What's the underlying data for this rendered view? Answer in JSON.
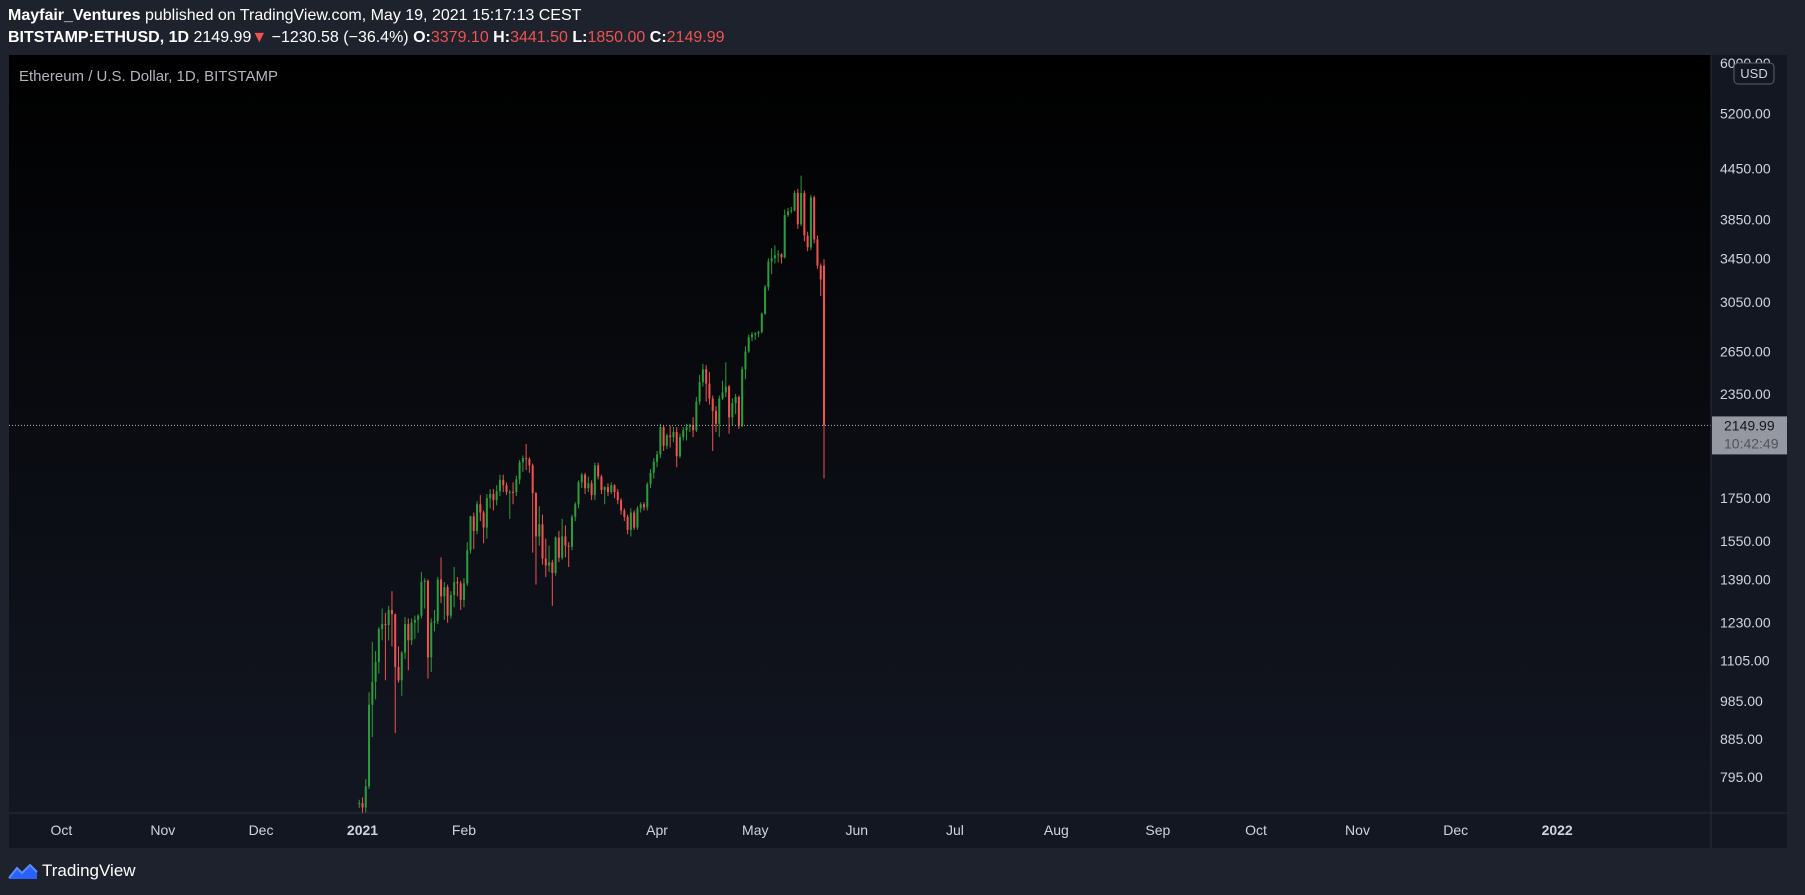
{
  "header": {
    "publisher": "Mayfair_Ventures",
    "published_text": " published on TradingView.com, May 19, 2021 15:17:13 CEST",
    "symbol": "BITSTAMP:ETHUSD, 1D",
    "last_price": "2149.99",
    "change": "−1230.58 (−36.4%)",
    "open_label": "O:",
    "open_value": "3379.10",
    "high_label": "H:",
    "high_value": "3441.50",
    "low_label": "L:",
    "low_value": "1850.00",
    "close_label": "C:",
    "close_value": "2149.99"
  },
  "footer": {
    "brand": "TradingView"
  },
  "colors": {
    "up": "#26a69a",
    "up_candle": "#2e9c3c",
    "down": "#ef5350",
    "background_top": "#000000",
    "background_bottom": "#131722",
    "price_label_bg": "#9598a1"
  },
  "chart_data": {
    "type": "candlestick",
    "title": "Ethereum / U.S. Dollar, 1D, BITSTAMP",
    "currency": "USD",
    "y_scale": "log",
    "ylim": [
      730,
      6100
    ],
    "y_ticks": [
      "6000.00",
      "5200.00",
      "4450.00",
      "3850.00",
      "3450.00",
      "3050.00",
      "2650.00",
      "2350.00",
      "1750.00",
      "1550.00",
      "1390.00",
      "1230.00",
      "1105.00",
      "985.00",
      "885.00",
      "795.00"
    ],
    "x_ticks": [
      {
        "label": "Oct",
        "date": "2020-10-01",
        "bold": false
      },
      {
        "label": "Nov",
        "date": "2020-11-01",
        "bold": false
      },
      {
        "label": "Dec",
        "date": "2020-12-01",
        "bold": false
      },
      {
        "label": "2021",
        "date": "2021-01-01",
        "bold": true
      },
      {
        "label": "Feb",
        "date": "2021-02-01",
        "bold": false
      },
      {
        "label": "Apr",
        "date": "2021-04-01",
        "bold": false
      },
      {
        "label": "May",
        "date": "2021-05-01",
        "bold": false
      },
      {
        "label": "Jun",
        "date": "2021-06-01",
        "bold": false
      },
      {
        "label": "Jul",
        "date": "2021-07-01",
        "bold": false
      },
      {
        "label": "Aug",
        "date": "2021-08-01",
        "bold": false
      },
      {
        "label": "Sep",
        "date": "2021-09-01",
        "bold": false
      },
      {
        "label": "Oct",
        "date": "2021-10-01",
        "bold": false
      },
      {
        "label": "Nov",
        "date": "2021-11-01",
        "bold": false
      },
      {
        "label": "Dec",
        "date": "2021-12-01",
        "bold": false
      },
      {
        "label": "2022",
        "date": "2022-01-01",
        "bold": true
      }
    ],
    "x_range": [
      "2020-09-15",
      "2022-02-17"
    ],
    "last_price": {
      "value": 2149.99,
      "label": "2149.99",
      "countdown": "10:42:49"
    },
    "series": [
      {
        "d": "2020-12-31",
        "o": 737,
        "h": 745,
        "l": 728,
        "c": 738
      },
      {
        "d": "2021-01-01",
        "o": 738,
        "h": 750,
        "l": 716,
        "c": 729
      },
      {
        "d": "2021-01-02",
        "o": 729,
        "h": 790,
        "l": 718,
        "c": 774
      },
      {
        "d": "2021-01-03",
        "o": 774,
        "h": 1010,
        "l": 768,
        "c": 975
      },
      {
        "d": "2021-01-04",
        "o": 975,
        "h": 1165,
        "l": 890,
        "c": 1040
      },
      {
        "d": "2021-01-05",
        "o": 1040,
        "h": 1135,
        "l": 990,
        "c": 1100
      },
      {
        "d": "2021-01-06",
        "o": 1100,
        "h": 1215,
        "l": 1065,
        "c": 1208
      },
      {
        "d": "2021-01-07",
        "o": 1208,
        "h": 1280,
        "l": 1170,
        "c": 1225
      },
      {
        "d": "2021-01-08",
        "o": 1225,
        "h": 1265,
        "l": 1045,
        "c": 1222
      },
      {
        "d": "2021-01-09",
        "o": 1222,
        "h": 1290,
        "l": 1170,
        "c": 1275
      },
      {
        "d": "2021-01-10",
        "o": 1275,
        "h": 1345,
        "l": 1150,
        "c": 1260
      },
      {
        "d": "2021-01-11",
        "o": 1260,
        "h": 1262,
        "l": 900,
        "c": 1085
      },
      {
        "d": "2021-01-12",
        "o": 1085,
        "h": 1150,
        "l": 1038,
        "c": 1045
      },
      {
        "d": "2021-01-13",
        "o": 1045,
        "h": 1135,
        "l": 1000,
        "c": 1130
      },
      {
        "d": "2021-01-14",
        "o": 1130,
        "h": 1250,
        "l": 1110,
        "c": 1225
      },
      {
        "d": "2021-01-15",
        "o": 1225,
        "h": 1245,
        "l": 1075,
        "c": 1170
      },
      {
        "d": "2021-01-16",
        "o": 1170,
        "h": 1245,
        "l": 1155,
        "c": 1230
      },
      {
        "d": "2021-01-17",
        "o": 1230,
        "h": 1255,
        "l": 1175,
        "c": 1240
      },
      {
        "d": "2021-01-18",
        "o": 1240,
        "h": 1260,
        "l": 1195,
        "c": 1255
      },
      {
        "d": "2021-01-19",
        "o": 1255,
        "h": 1420,
        "l": 1245,
        "c": 1380
      },
      {
        "d": "2021-01-20",
        "o": 1380,
        "h": 1395,
        "l": 1280,
        "c": 1385
      },
      {
        "d": "2021-01-21",
        "o": 1385,
        "h": 1390,
        "l": 1050,
        "c": 1115
      },
      {
        "d": "2021-01-22",
        "o": 1115,
        "h": 1245,
        "l": 1070,
        "c": 1230
      },
      {
        "d": "2021-01-23",
        "o": 1230,
        "h": 1275,
        "l": 1200,
        "c": 1235
      },
      {
        "d": "2021-01-24",
        "o": 1235,
        "h": 1400,
        "l": 1225,
        "c": 1390
      },
      {
        "d": "2021-01-25",
        "o": 1390,
        "h": 1480,
        "l": 1300,
        "c": 1325
      },
      {
        "d": "2021-01-26",
        "o": 1325,
        "h": 1380,
        "l": 1240,
        "c": 1360
      },
      {
        "d": "2021-01-27",
        "o": 1360,
        "h": 1370,
        "l": 1230,
        "c": 1255
      },
      {
        "d": "2021-01-28",
        "o": 1255,
        "h": 1345,
        "l": 1245,
        "c": 1330
      },
      {
        "d": "2021-01-29",
        "o": 1330,
        "h": 1440,
        "l": 1285,
        "c": 1380
      },
      {
        "d": "2021-01-30",
        "o": 1380,
        "h": 1400,
        "l": 1325,
        "c": 1375
      },
      {
        "d": "2021-01-31",
        "o": 1375,
        "h": 1385,
        "l": 1275,
        "c": 1312
      },
      {
        "d": "2021-02-01",
        "o": 1312,
        "h": 1395,
        "l": 1285,
        "c": 1375
      },
      {
        "d": "2021-02-02",
        "o": 1375,
        "h": 1545,
        "l": 1365,
        "c": 1510
      },
      {
        "d": "2021-02-03",
        "o": 1510,
        "h": 1665,
        "l": 1495,
        "c": 1662
      },
      {
        "d": "2021-02-04",
        "o": 1662,
        "h": 1680,
        "l": 1515,
        "c": 1595
      },
      {
        "d": "2021-02-05",
        "o": 1595,
        "h": 1735,
        "l": 1580,
        "c": 1720
      },
      {
        "d": "2021-02-06",
        "o": 1720,
        "h": 1765,
        "l": 1640,
        "c": 1680
      },
      {
        "d": "2021-02-07",
        "o": 1680,
        "h": 1690,
        "l": 1540,
        "c": 1610
      },
      {
        "d": "2021-02-08",
        "o": 1610,
        "h": 1770,
        "l": 1560,
        "c": 1750
      },
      {
        "d": "2021-02-09",
        "o": 1750,
        "h": 1795,
        "l": 1700,
        "c": 1770
      },
      {
        "d": "2021-02-10",
        "o": 1770,
        "h": 1795,
        "l": 1690,
        "c": 1740
      },
      {
        "d": "2021-02-11",
        "o": 1740,
        "h": 1815,
        "l": 1715,
        "c": 1785
      },
      {
        "d": "2021-02-12",
        "o": 1785,
        "h": 1870,
        "l": 1760,
        "c": 1843
      },
      {
        "d": "2021-02-13",
        "o": 1843,
        "h": 1870,
        "l": 1780,
        "c": 1815
      },
      {
        "d": "2021-02-14",
        "o": 1815,
        "h": 1830,
        "l": 1765,
        "c": 1780
      },
      {
        "d": "2021-02-15",
        "o": 1780,
        "h": 1790,
        "l": 1650,
        "c": 1781
      },
      {
        "d": "2021-02-16",
        "o": 1781,
        "h": 1830,
        "l": 1720,
        "c": 1780
      },
      {
        "d": "2021-02-17",
        "o": 1780,
        "h": 1865,
        "l": 1760,
        "c": 1845
      },
      {
        "d": "2021-02-18",
        "o": 1845,
        "h": 1950,
        "l": 1820,
        "c": 1937
      },
      {
        "d": "2021-02-19",
        "o": 1937,
        "h": 1975,
        "l": 1885,
        "c": 1960
      },
      {
        "d": "2021-02-20",
        "o": 1960,
        "h": 2040,
        "l": 1895,
        "c": 1955
      },
      {
        "d": "2021-02-21",
        "o": 1955,
        "h": 1965,
        "l": 1880,
        "c": 1920
      },
      {
        "d": "2021-02-22",
        "o": 1920,
        "h": 1930,
        "l": 1500,
        "c": 1775
      },
      {
        "d": "2021-02-23",
        "o": 1775,
        "h": 1780,
        "l": 1370,
        "c": 1570
      },
      {
        "d": "2021-02-24",
        "o": 1570,
        "h": 1710,
        "l": 1530,
        "c": 1625
      },
      {
        "d": "2021-02-25",
        "o": 1625,
        "h": 1670,
        "l": 1450,
        "c": 1475
      },
      {
        "d": "2021-02-26",
        "o": 1475,
        "h": 1560,
        "l": 1400,
        "c": 1446
      },
      {
        "d": "2021-02-27",
        "o": 1446,
        "h": 1530,
        "l": 1420,
        "c": 1459
      },
      {
        "d": "2021-02-28",
        "o": 1459,
        "h": 1470,
        "l": 1290,
        "c": 1416
      },
      {
        "d": "2021-03-01",
        "o": 1416,
        "h": 1570,
        "l": 1405,
        "c": 1565
      },
      {
        "d": "2021-03-02",
        "o": 1565,
        "h": 1595,
        "l": 1460,
        "c": 1478
      },
      {
        "d": "2021-03-03",
        "o": 1478,
        "h": 1650,
        "l": 1470,
        "c": 1570
      },
      {
        "d": "2021-03-04",
        "o": 1570,
        "h": 1620,
        "l": 1480,
        "c": 1530
      },
      {
        "d": "2021-03-05",
        "o": 1530,
        "h": 1545,
        "l": 1440,
        "c": 1525
      },
      {
        "d": "2021-03-06",
        "o": 1525,
        "h": 1670,
        "l": 1510,
        "c": 1660
      },
      {
        "d": "2021-03-07",
        "o": 1660,
        "h": 1730,
        "l": 1640,
        "c": 1720
      },
      {
        "d": "2021-03-08",
        "o": 1720,
        "h": 1840,
        "l": 1700,
        "c": 1830
      },
      {
        "d": "2021-03-09",
        "o": 1830,
        "h": 1880,
        "l": 1800,
        "c": 1870
      },
      {
        "d": "2021-03-10",
        "o": 1870,
        "h": 1880,
        "l": 1770,
        "c": 1800
      },
      {
        "d": "2021-03-11",
        "o": 1800,
        "h": 1860,
        "l": 1780,
        "c": 1825
      },
      {
        "d": "2021-03-12",
        "o": 1825,
        "h": 1840,
        "l": 1740,
        "c": 1765
      },
      {
        "d": "2021-03-13",
        "o": 1765,
        "h": 1935,
        "l": 1740,
        "c": 1920
      },
      {
        "d": "2021-03-14",
        "o": 1920,
        "h": 1935,
        "l": 1845,
        "c": 1860
      },
      {
        "d": "2021-03-15",
        "o": 1860,
        "h": 1870,
        "l": 1770,
        "c": 1790
      },
      {
        "d": "2021-03-16",
        "o": 1790,
        "h": 1810,
        "l": 1720,
        "c": 1805
      },
      {
        "d": "2021-03-17",
        "o": 1805,
        "h": 1825,
        "l": 1760,
        "c": 1780
      },
      {
        "d": "2021-03-18",
        "o": 1780,
        "h": 1830,
        "l": 1770,
        "c": 1815
      },
      {
        "d": "2021-03-19",
        "o": 1815,
        "h": 1820,
        "l": 1750,
        "c": 1780
      },
      {
        "d": "2021-03-20",
        "o": 1780,
        "h": 1795,
        "l": 1720,
        "c": 1740
      },
      {
        "d": "2021-03-21",
        "o": 1740,
        "h": 1750,
        "l": 1670,
        "c": 1690
      },
      {
        "d": "2021-03-22",
        "o": 1690,
        "h": 1700,
        "l": 1640,
        "c": 1660
      },
      {
        "d": "2021-03-23",
        "o": 1660,
        "h": 1670,
        "l": 1580,
        "c": 1600
      },
      {
        "d": "2021-03-24",
        "o": 1600,
        "h": 1700,
        "l": 1570,
        "c": 1680
      },
      {
        "d": "2021-03-25",
        "o": 1680,
        "h": 1690,
        "l": 1600,
        "c": 1610
      },
      {
        "d": "2021-03-26",
        "o": 1610,
        "h": 1710,
        "l": 1600,
        "c": 1700
      },
      {
        "d": "2021-03-27",
        "o": 1700,
        "h": 1730,
        "l": 1680,
        "c": 1720
      },
      {
        "d": "2021-03-28",
        "o": 1720,
        "h": 1730,
        "l": 1690,
        "c": 1705
      },
      {
        "d": "2021-03-29",
        "o": 1705,
        "h": 1830,
        "l": 1690,
        "c": 1820
      },
      {
        "d": "2021-03-30",
        "o": 1820,
        "h": 1900,
        "l": 1800,
        "c": 1880
      },
      {
        "d": "2021-03-31",
        "o": 1880,
        "h": 1960,
        "l": 1850,
        "c": 1940
      },
      {
        "d": "2021-04-01",
        "o": 1940,
        "h": 2000,
        "l": 1910,
        "c": 1980
      },
      {
        "d": "2021-04-02",
        "o": 1980,
        "h": 2160,
        "l": 1960,
        "c": 2140
      },
      {
        "d": "2021-04-03",
        "o": 2140,
        "h": 2150,
        "l": 2000,
        "c": 2030
      },
      {
        "d": "2021-04-04",
        "o": 2030,
        "h": 2100,
        "l": 2010,
        "c": 2090
      },
      {
        "d": "2021-04-05",
        "o": 2090,
        "h": 2150,
        "l": 2020,
        "c": 2080
      },
      {
        "d": "2021-04-06",
        "o": 2080,
        "h": 2140,
        "l": 2050,
        "c": 2110
      },
      {
        "d": "2021-04-07",
        "o": 2110,
        "h": 2140,
        "l": 1910,
        "c": 1970
      },
      {
        "d": "2021-04-08",
        "o": 1970,
        "h": 2100,
        "l": 1960,
        "c": 2080
      },
      {
        "d": "2021-04-09",
        "o": 2080,
        "h": 2140,
        "l": 2060,
        "c": 2120
      },
      {
        "d": "2021-04-10",
        "o": 2120,
        "h": 2160,
        "l": 2060,
        "c": 2140
      },
      {
        "d": "2021-04-11",
        "o": 2140,
        "h": 2160,
        "l": 2110,
        "c": 2150
      },
      {
        "d": "2021-04-12",
        "o": 2150,
        "h": 2200,
        "l": 2080,
        "c": 2120
      },
      {
        "d": "2021-04-13",
        "o": 2120,
        "h": 2330,
        "l": 2110,
        "c": 2300
      },
      {
        "d": "2021-04-14",
        "o": 2300,
        "h": 2480,
        "l": 2280,
        "c": 2430
      },
      {
        "d": "2021-04-15",
        "o": 2430,
        "h": 2560,
        "l": 2400,
        "c": 2520
      },
      {
        "d": "2021-04-16",
        "o": 2520,
        "h": 2550,
        "l": 2300,
        "c": 2420
      },
      {
        "d": "2021-04-17",
        "o": 2420,
        "h": 2500,
        "l": 2280,
        "c": 2320
      },
      {
        "d": "2021-04-18",
        "o": 2320,
        "h": 2340,
        "l": 2000,
        "c": 2240
      },
      {
        "d": "2021-04-19",
        "o": 2240,
        "h": 2270,
        "l": 2110,
        "c": 2160
      },
      {
        "d": "2021-04-20",
        "o": 2160,
        "h": 2340,
        "l": 2080,
        "c": 2320
      },
      {
        "d": "2021-04-21",
        "o": 2320,
        "h": 2440,
        "l": 2310,
        "c": 2360
      },
      {
        "d": "2021-04-22",
        "o": 2360,
        "h": 2570,
        "l": 2330,
        "c": 2400
      },
      {
        "d": "2021-04-23",
        "o": 2400,
        "h": 2410,
        "l": 2100,
        "c": 2200
      },
      {
        "d": "2021-04-24",
        "o": 2200,
        "h": 2320,
        "l": 2150,
        "c": 2290
      },
      {
        "d": "2021-04-25",
        "o": 2290,
        "h": 2350,
        "l": 2220,
        "c": 2330
      },
      {
        "d": "2021-04-26",
        "o": 2330,
        "h": 2340,
        "l": 2130,
        "c": 2150
      },
      {
        "d": "2021-04-27",
        "o": 2150,
        "h": 2540,
        "l": 2140,
        "c": 2520
      },
      {
        "d": "2021-04-28",
        "o": 2520,
        "h": 2690,
        "l": 2450,
        "c": 2650
      },
      {
        "d": "2021-04-29",
        "o": 2650,
        "h": 2780,
        "l": 2640,
        "c": 2760
      },
      {
        "d": "2021-04-30",
        "o": 2760,
        "h": 2800,
        "l": 2730,
        "c": 2780
      },
      {
        "d": "2021-05-01",
        "o": 2780,
        "h": 2800,
        "l": 2740,
        "c": 2790
      },
      {
        "d": "2021-05-02",
        "o": 2790,
        "h": 2810,
        "l": 2760,
        "c": 2800
      },
      {
        "d": "2021-05-03",
        "o": 2800,
        "h": 2960,
        "l": 2790,
        "c": 2950
      },
      {
        "d": "2021-05-04",
        "o": 2950,
        "h": 3200,
        "l": 2940,
        "c": 3180
      },
      {
        "d": "2021-05-05",
        "o": 3180,
        "h": 3450,
        "l": 3150,
        "c": 3420
      },
      {
        "d": "2021-05-06",
        "o": 3420,
        "h": 3550,
        "l": 3300,
        "c": 3450
      },
      {
        "d": "2021-05-07",
        "o": 3450,
        "h": 3580,
        "l": 3400,
        "c": 3480
      },
      {
        "d": "2021-05-08",
        "o": 3480,
        "h": 3530,
        "l": 3410,
        "c": 3490
      },
      {
        "d": "2021-05-09",
        "o": 3490,
        "h": 3500,
        "l": 3400,
        "c": 3460
      },
      {
        "d": "2021-05-10",
        "o": 3460,
        "h": 3960,
        "l": 3450,
        "c": 3900
      },
      {
        "d": "2021-05-11",
        "o": 3900,
        "h": 3980,
        "l": 3880,
        "c": 3940
      },
      {
        "d": "2021-05-12",
        "o": 3940,
        "h": 3990,
        "l": 3920,
        "c": 3950
      },
      {
        "d": "2021-05-13",
        "o": 3950,
        "h": 4180,
        "l": 3940,
        "c": 4150
      },
      {
        "d": "2021-05-14",
        "o": 4150,
        "h": 4200,
        "l": 3750,
        "c": 3800
      },
      {
        "d": "2021-05-15",
        "o": 3800,
        "h": 4360,
        "l": 3780,
        "c": 4150
      },
      {
        "d": "2021-05-16",
        "o": 4150,
        "h": 4180,
        "l": 3620,
        "c": 3680
      },
      {
        "d": "2021-05-17",
        "o": 3680,
        "h": 3720,
        "l": 3520,
        "c": 3560
      },
      {
        "d": "2021-05-18",
        "o": 3560,
        "h": 4130,
        "l": 3530,
        "c": 4100
      },
      {
        "d": "2021-05-19",
        "o": 4100,
        "h": 4120,
        "l": 3600,
        "c": 3640
      },
      {
        "d": "2021-05-20",
        "o": 3640,
        "h": 3680,
        "l": 3350,
        "c": 3380
      },
      {
        "d": "2021-05-21",
        "o": 3380,
        "h": 3400,
        "l": 3100,
        "c": 3250
      },
      {
        "d": "2021-05-22",
        "o": 3379.1,
        "h": 3441.5,
        "l": 1850,
        "c": 2149.99
      }
    ]
  }
}
